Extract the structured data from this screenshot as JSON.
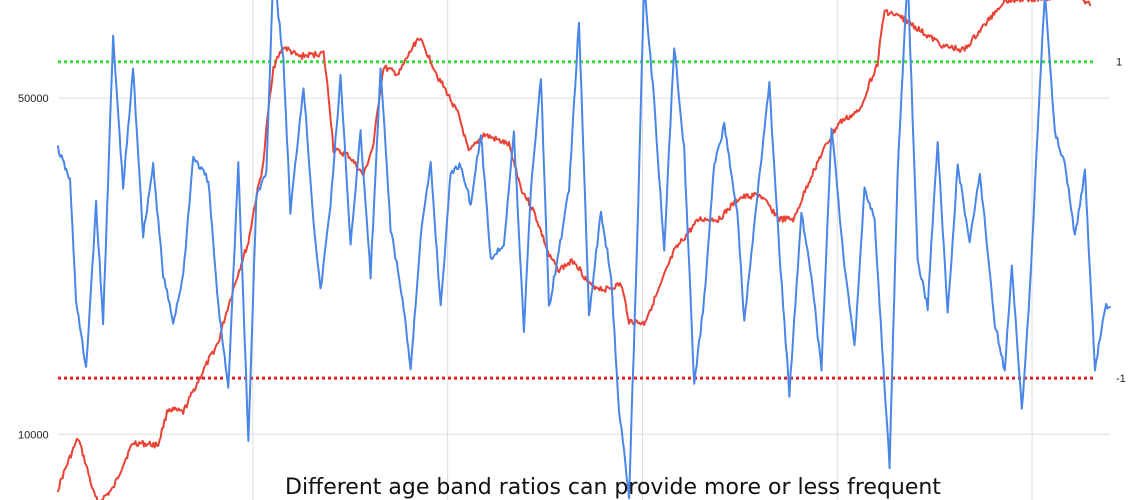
{
  "chart_data": {
    "type": "line",
    "title": "",
    "xlabel": "",
    "ylabel": "",
    "y_left": {
      "scale": "log",
      "range": [
        7300,
        80000
      ],
      "ticks": [
        10000,
        50000
      ],
      "tick_labels": [
        "10000",
        "50000"
      ]
    },
    "y_right": {
      "range": [
        -1.77,
        1.39
      ],
      "ticks": [
        1,
        -1
      ],
      "tick_labels": [
        "1",
        "-1"
      ]
    },
    "x_range": [
      0,
      1050
    ],
    "grid": true,
    "legend": "none",
    "reference_lines": [
      {
        "value": 1,
        "axis": "right",
        "color": "#33dd33",
        "style": "dotted"
      },
      {
        "value": -1,
        "axis": "right",
        "color": "#e02020",
        "style": "dotted"
      }
    ],
    "series": [
      {
        "axis": "left",
        "color": "#ea4335",
        "points": [
          [
            0,
            7700
          ],
          [
            20,
            9800
          ],
          [
            35,
            7600
          ],
          [
            40,
            7200
          ],
          [
            55,
            7700
          ],
          [
            75,
            9600
          ],
          [
            100,
            9500
          ],
          [
            110,
            11300
          ],
          [
            125,
            11100
          ],
          [
            140,
            12900
          ],
          [
            160,
            15500
          ],
          [
            175,
            20000
          ],
          [
            190,
            25000
          ],
          [
            205,
            36500
          ],
          [
            215,
            58000
          ],
          [
            225,
            64000
          ],
          [
            240,
            61000
          ],
          [
            265,
            62000
          ],
          [
            275,
            39000
          ],
          [
            290,
            38000
          ],
          [
            305,
            34500
          ],
          [
            315,
            40000
          ],
          [
            325,
            58000
          ],
          [
            340,
            56000
          ],
          [
            360,
            67000
          ],
          [
            380,
            55000
          ],
          [
            400,
            46000
          ],
          [
            410,
            38500
          ],
          [
            425,
            42000
          ],
          [
            450,
            40000
          ],
          [
            462,
            32500
          ],
          [
            475,
            29000
          ],
          [
            490,
            23500
          ],
          [
            500,
            22000
          ],
          [
            515,
            23000
          ],
          [
            530,
            20500
          ],
          [
            545,
            20000
          ],
          [
            562,
            20500
          ],
          [
            570,
            17200
          ],
          [
            585,
            17000
          ],
          [
            600,
            20000
          ],
          [
            615,
            24000
          ],
          [
            640,
            28000
          ],
          [
            660,
            28000
          ],
          [
            680,
            31000
          ],
          [
            700,
            31500
          ],
          [
            720,
            28000
          ],
          [
            735,
            28000
          ],
          [
            760,
            37500
          ],
          [
            780,
            44500
          ],
          [
            800,
            47000
          ],
          [
            818,
            59000
          ],
          [
            825,
            76000
          ],
          [
            845,
            73000
          ],
          [
            865,
            68000
          ],
          [
            885,
            64000
          ],
          [
            905,
            63000
          ],
          [
            925,
            71000
          ],
          [
            945,
            80000
          ],
          [
            990,
            81000
          ],
          [
            1010,
            84000
          ],
          [
            1030,
            78000
          ]
        ]
      },
      {
        "axis": "right",
        "color": "#4a86e8",
        "points": [
          [
            0,
            0.45
          ],
          [
            12,
            0.25
          ],
          [
            18,
            -0.5
          ],
          [
            28,
            -0.95
          ],
          [
            38,
            0.1
          ],
          [
            45,
            -0.65
          ],
          [
            55,
            1.15
          ],
          [
            65,
            0.2
          ],
          [
            75,
            0.95
          ],
          [
            85,
            -0.1
          ],
          [
            95,
            0.35
          ],
          [
            105,
            -0.35
          ],
          [
            115,
            -0.65
          ],
          [
            125,
            -0.35
          ],
          [
            135,
            0.4
          ],
          [
            150,
            0.25
          ],
          [
            160,
            -0.55
          ],
          [
            170,
            -1.05
          ],
          [
            180,
            0.35
          ],
          [
            190,
            -1.4
          ],
          [
            198,
            0.15
          ],
          [
            208,
            0.3
          ],
          [
            215,
            1.6
          ],
          [
            225,
            1.0
          ],
          [
            232,
            0.05
          ],
          [
            245,
            0.85
          ],
          [
            255,
            0.0
          ],
          [
            262,
            -0.45
          ],
          [
            272,
            0.1
          ],
          [
            282,
            0.9
          ],
          [
            292,
            -0.15
          ],
          [
            302,
            0.55
          ],
          [
            312,
            -0.35
          ],
          [
            322,
            0.95
          ],
          [
            332,
            -0.05
          ],
          [
            345,
            -0.55
          ],
          [
            352,
            -0.95
          ],
          [
            362,
            -0.1
          ],
          [
            372,
            0.35
          ],
          [
            382,
            -0.55
          ],
          [
            392,
            0.3
          ],
          [
            402,
            0.35
          ],
          [
            412,
            0.1
          ],
          [
            422,
            0.55
          ],
          [
            432,
            -0.25
          ],
          [
            445,
            -0.15
          ],
          [
            455,
            0.55
          ],
          [
            465,
            -0.7
          ],
          [
            472,
            0.2
          ],
          [
            482,
            0.9
          ],
          [
            490,
            -0.55
          ],
          [
            500,
            -0.2
          ],
          [
            510,
            0.2
          ],
          [
            520,
            1.25
          ],
          [
            530,
            -0.6
          ],
          [
            542,
            0.05
          ],
          [
            552,
            -0.35
          ],
          [
            560,
            -1.2
          ],
          [
            570,
            -1.75
          ],
          [
            578,
            -0.15
          ],
          [
            585,
            1.5
          ],
          [
            595,
            0.75
          ],
          [
            605,
            -0.2
          ],
          [
            615,
            1.1
          ],
          [
            625,
            0.45
          ],
          [
            635,
            -1.05
          ],
          [
            645,
            -0.5
          ],
          [
            655,
            0.35
          ],
          [
            665,
            0.6
          ],
          [
            678,
            0.05
          ],
          [
            685,
            -0.65
          ],
          [
            698,
            0.15
          ],
          [
            710,
            0.85
          ],
          [
            720,
            -0.2
          ],
          [
            730,
            -1.1
          ],
          [
            742,
            0.05
          ],
          [
            752,
            -0.35
          ],
          [
            762,
            -0.95
          ],
          [
            772,
            0.6
          ],
          [
            785,
            -0.3
          ],
          [
            795,
            -0.8
          ],
          [
            805,
            0.2
          ],
          [
            815,
            0.0
          ],
          [
            825,
            -1.05
          ],
          [
            830,
            -1.55
          ],
          [
            838,
            0.3
          ],
          [
            848,
            1.55
          ],
          [
            858,
            -0.25
          ],
          [
            868,
            -0.55
          ],
          [
            878,
            0.5
          ],
          [
            888,
            -0.6
          ],
          [
            898,
            0.35
          ],
          [
            910,
            -0.15
          ],
          [
            920,
            0.3
          ],
          [
            935,
            -0.65
          ],
          [
            945,
            -0.95
          ],
          [
            952,
            -0.3
          ],
          [
            962,
            -1.2
          ],
          [
            970,
            -0.45
          ],
          [
            980,
            0.85
          ],
          [
            985,
            1.45
          ],
          [
            995,
            0.55
          ],
          [
            1005,
            0.35
          ],
          [
            1015,
            -0.1
          ],
          [
            1025,
            0.3
          ],
          [
            1035,
            -0.95
          ],
          [
            1045,
            -0.55
          ],
          [
            1050,
            -0.55
          ]
        ]
      }
    ],
    "right_labels": [
      "1",
      "-1"
    ],
    "caption": "Different age band ratios can provide more or less frequent"
  }
}
